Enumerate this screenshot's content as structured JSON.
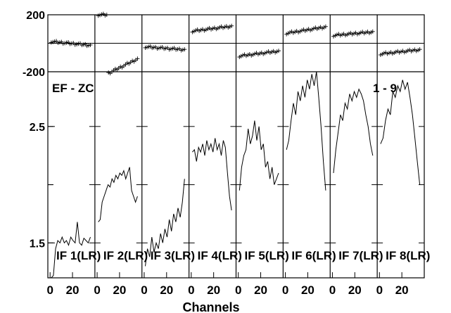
{
  "chart_data": {
    "type": "line",
    "title": "",
    "annotation_left": "EF - ZC",
    "annotation_right": "1 - 9",
    "xlabel": "Channels",
    "x_tick_labels": [
      "0",
      "20"
    ],
    "xlim": [
      -2,
      40
    ],
    "phase_panel": {
      "ylim": [
        -200,
        200
      ],
      "tick_labels": [
        "200",
        "-200"
      ],
      "ref_lines": [
        0
      ],
      "marker": "plus"
    },
    "amplitude_panel": {
      "ylim": [
        1.2,
        2.97
      ],
      "tick_labels": [
        "2.5",
        "1.5"
      ],
      "tick_values": [
        2.5,
        1.5
      ],
      "minor_ticks": [
        2.0
      ]
    },
    "series": [
      {
        "name": "IF 1(LR)",
        "phase": [
          12,
          -14
        ],
        "amplitude": [
          1.2,
          1.22,
          1.45,
          1.52,
          1.5,
          1.55,
          1.5,
          1.52,
          1.48,
          1.55,
          1.52,
          1.5,
          1.68,
          1.5,
          1.48,
          1.54,
          1.52,
          1.5,
          1.55
        ]
      },
      {
        "name": "IF 2(LR)",
        "phase": [
          200,
          -210,
          -110
        ],
        "amplitude": [
          1.68,
          1.7,
          1.85,
          1.9,
          1.95,
          2.0,
          1.98,
          2.05,
          2.02,
          2.08,
          2.05,
          2.1,
          2.08,
          2.12,
          2.05,
          2.1,
          2.15,
          1.95,
          1.9,
          1.85,
          1.9
        ]
      },
      {
        "name": "IF 3(LR)",
        "phase": [
          -25,
          -45
        ],
        "amplitude": [
          1.3,
          1.45,
          1.38,
          1.55,
          1.42,
          1.5,
          1.45,
          1.58,
          1.5,
          1.62,
          1.55,
          1.7,
          1.6,
          1.75,
          1.68,
          1.8,
          1.72,
          1.85,
          2.05
        ]
      },
      {
        "name": "IF 4(LR)",
        "phase": [
          85,
          120
        ],
        "amplitude": [
          2.28,
          2.3,
          2.2,
          2.32,
          2.28,
          2.35,
          2.25,
          2.38,
          2.3,
          2.35,
          2.28,
          2.4,
          2.3,
          2.35,
          2.25,
          2.38,
          2.32,
          2.1,
          1.9,
          1.78
        ]
      },
      {
        "name": "IF 5(LR)",
        "phase": [
          -90,
          -55
        ],
        "amplitude": [
          1.95,
          2.15,
          2.25,
          2.3,
          2.48,
          2.35,
          2.42,
          2.55,
          2.38,
          2.5,
          2.3,
          2.35,
          2.15,
          2.2,
          2.05,
          2.15,
          2.0,
          2.05,
          2.1
        ]
      },
      {
        "name": "IF 6(LR)",
        "phase": [
          70,
          115
        ],
        "amplitude": [
          2.3,
          2.38,
          2.55,
          2.7,
          2.6,
          2.8,
          2.72,
          2.85,
          2.75,
          2.9,
          2.82,
          2.95,
          2.85,
          2.97,
          2.75,
          2.5,
          2.2,
          1.95
        ]
      },
      {
        "name": "IF 7(LR)",
        "phase": [
          55,
          80
        ],
        "amplitude": [
          2.1,
          2.3,
          2.45,
          2.6,
          2.55,
          2.7,
          2.65,
          2.78,
          2.72,
          2.8,
          2.75,
          2.82,
          2.78,
          2.72,
          2.6,
          2.5,
          2.35,
          2.25
        ]
      },
      {
        "name": "IF 8(LR)",
        "phase": [
          -75,
          -45
        ],
        "amplitude": [
          2.35,
          2.4,
          2.55,
          2.65,
          2.6,
          2.8,
          2.75,
          2.85,
          2.8,
          2.9,
          2.82,
          2.88,
          2.75,
          2.6,
          2.4,
          2.2,
          2.0
        ]
      }
    ]
  }
}
